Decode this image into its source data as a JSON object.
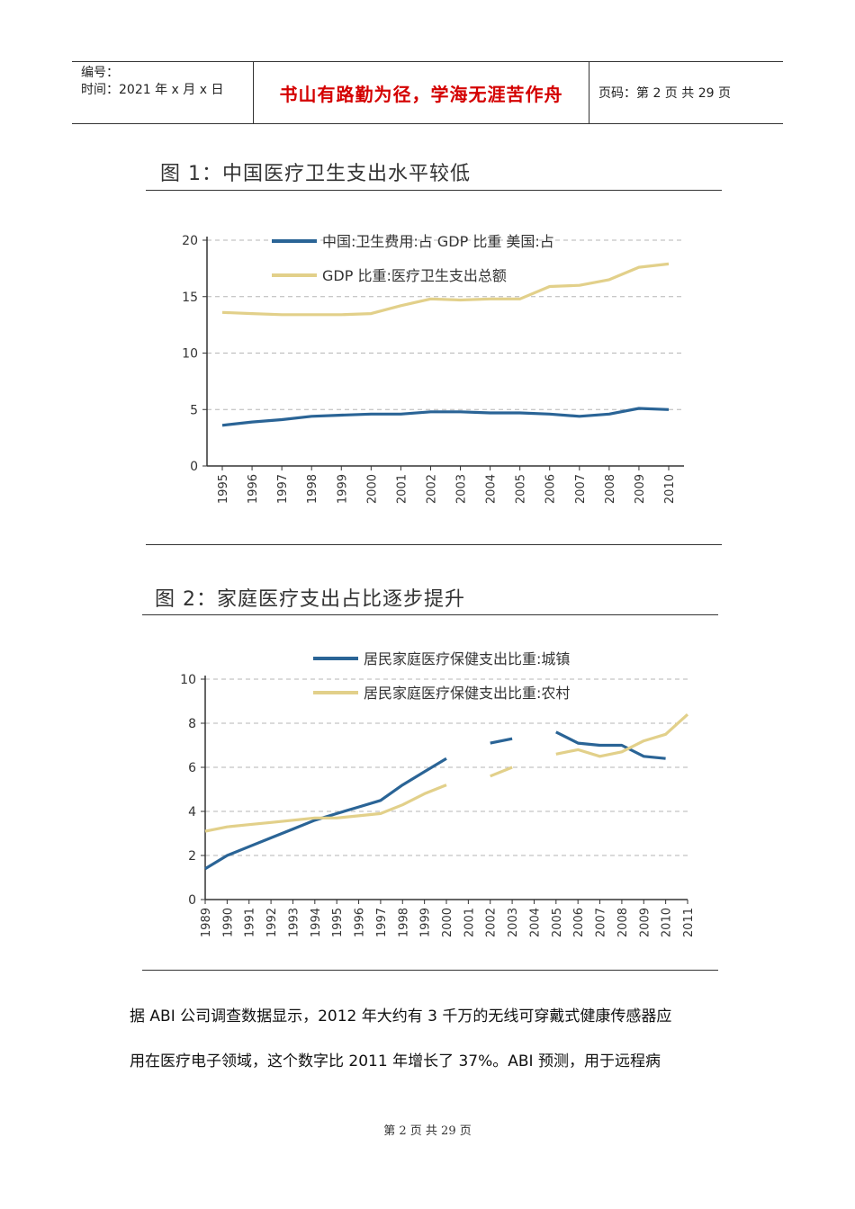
{
  "header": {
    "number_label": "编号：",
    "time_label": "时间：2021 年 x 月 x 日",
    "motto": "书山有路勤为径，学海无涯苦作舟",
    "page_info": "页码：第 2 页  共 29 页"
  },
  "figure1": {
    "title": "图 1：中国医疗卫生支出水平较低"
  },
  "figure2": {
    "title": "图 2：家庭医疗支出占比逐步提升"
  },
  "chart_data": [
    {
      "type": "line",
      "title": "图 1：中国医疗卫生支出水平较低",
      "x": [
        "1995",
        "1996",
        "1997",
        "1998",
        "1999",
        "2000",
        "2001",
        "2002",
        "2003",
        "2004",
        "2005",
        "2006",
        "2007",
        "2008",
        "2009",
        "2010"
      ],
      "ylim": [
        0,
        20
      ],
      "yticks": [
        "0",
        "5",
        "10",
        "15",
        "20"
      ],
      "grid": true,
      "legend_position": "top",
      "series": [
        {
          "name": "中国:卫生费用:占 GDP 比重 美国:占",
          "color": "#2a6496",
          "values": [
            3.6,
            3.9,
            4.1,
            4.4,
            4.5,
            4.6,
            4.6,
            4.8,
            4.8,
            4.7,
            4.7,
            4.6,
            4.4,
            4.6,
            5.1,
            5.0
          ]
        },
        {
          "name": "GDP 比重:医疗卫生支出总额",
          "color": "#e2d08a",
          "values": [
            13.6,
            13.5,
            13.4,
            13.4,
            13.4,
            13.5,
            14.2,
            14.8,
            14.7,
            14.8,
            14.8,
            15.9,
            16.0,
            16.5,
            17.6,
            17.9
          ]
        }
      ]
    },
    {
      "type": "line",
      "title": "图 2：家庭医疗支出占比逐步提升",
      "x": [
        "1989",
        "1990",
        "1991",
        "1992",
        "1993",
        "1994",
        "1995",
        "1996",
        "1997",
        "1998",
        "1999",
        "2000",
        "2001",
        "2002",
        "2003",
        "2004",
        "2005",
        "2006",
        "2007",
        "2008",
        "2009",
        "2010",
        "2011"
      ],
      "ylim": [
        0,
        10
      ],
      "yticks": [
        "0",
        "2",
        "4",
        "6",
        "8",
        "10"
      ],
      "grid": true,
      "legend_position": "top",
      "series": [
        {
          "name": "居民家庭医疗保健支出比重:城镇",
          "color": "#2a6496",
          "values": [
            1.4,
            2.0,
            2.4,
            2.8,
            3.2,
            3.6,
            3.9,
            4.2,
            4.5,
            5.2,
            5.8,
            6.4,
            null,
            7.1,
            7.3,
            null,
            7.6,
            7.1,
            7.0,
            7.0,
            6.5,
            6.4,
            null
          ]
        },
        {
          "name": "居民家庭医疗保健支出比重:农村",
          "color": "#e2d08a",
          "values": [
            3.1,
            3.3,
            3.4,
            3.5,
            3.6,
            3.7,
            3.7,
            3.8,
            3.9,
            4.3,
            4.8,
            5.2,
            null,
            5.6,
            6.0,
            null,
            6.6,
            6.8,
            6.5,
            6.7,
            7.2,
            7.5,
            8.4
          ]
        }
      ]
    }
  ],
  "body": {
    "line1": "据 ABI 公司调查数据显示，2012 年大约有 3 千万的无线可穿戴式健康传感器应",
    "line2": "用在医疗电子领域，这个数字比 2011 年增长了 37%。ABI 预测，用于远程病"
  },
  "footer": {
    "page_text": "第 2 页 共 29 页"
  }
}
